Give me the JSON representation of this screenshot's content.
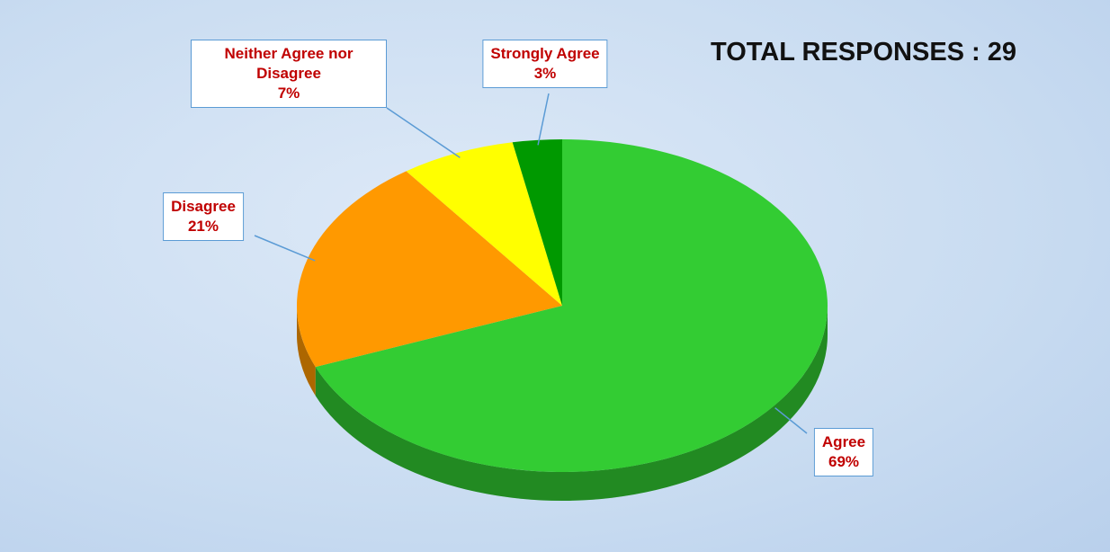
{
  "chart_data": {
    "type": "pie",
    "title": "TOTAL RESPONSES : 29",
    "categories": [
      "Agree",
      "Disagree",
      "Neither Agree nor Disagree",
      "Strongly Agree"
    ],
    "values": [
      69,
      21,
      7,
      3
    ],
    "value_labels": [
      "69%",
      "21%",
      "7%",
      "3%"
    ],
    "colors": [
      "#33cc33",
      "#ff9900",
      "#ffff00",
      "#009900"
    ]
  }
}
